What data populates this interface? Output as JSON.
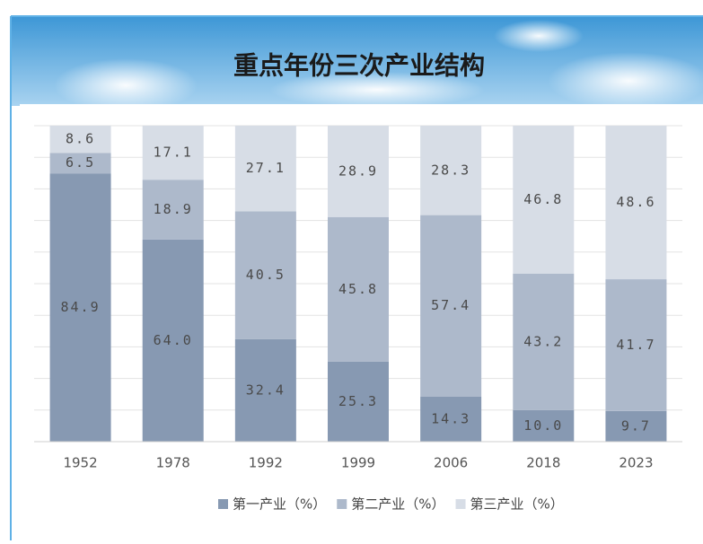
{
  "chart_data": {
    "type": "stacked_bar",
    "title": "重点年份三次产业结构",
    "categories": [
      "1952",
      "1978",
      "1992",
      "1999",
      "2006",
      "2018",
      "2023"
    ],
    "series": [
      {
        "name": "第一产业（%）",
        "color": "#8799b2",
        "values": [
          84.9,
          64.0,
          32.4,
          25.3,
          14.3,
          10.0,
          9.7
        ],
        "value_labels": [
          "84.9",
          "64.0",
          "32.4",
          "25.3",
          "14.3",
          "10.0",
          "9.7"
        ]
      },
      {
        "name": "第二产业（%）",
        "color": "#adb9cb",
        "values": [
          6.5,
          18.9,
          40.5,
          45.8,
          57.4,
          43.2,
          41.7
        ],
        "value_labels": [
          "6.5",
          "18.9",
          "40.5",
          "45.8",
          "57.4",
          "43.2",
          "41.7"
        ]
      },
      {
        "name": "第三产业（%）",
        "color": "#d7dde6",
        "values": [
          8.6,
          17.1,
          27.1,
          28.9,
          28.3,
          46.8,
          48.6
        ],
        "value_labels": [
          "8.6",
          "17.1",
          "27.1",
          "28.9",
          "28.3",
          "46.8",
          "48.6"
        ]
      }
    ],
    "ylim": [
      0,
      100
    ],
    "yticks": [
      0,
      10,
      20,
      30,
      40,
      50,
      60,
      70,
      80,
      90,
      100
    ],
    "grid": true,
    "legend": "bottom"
  }
}
